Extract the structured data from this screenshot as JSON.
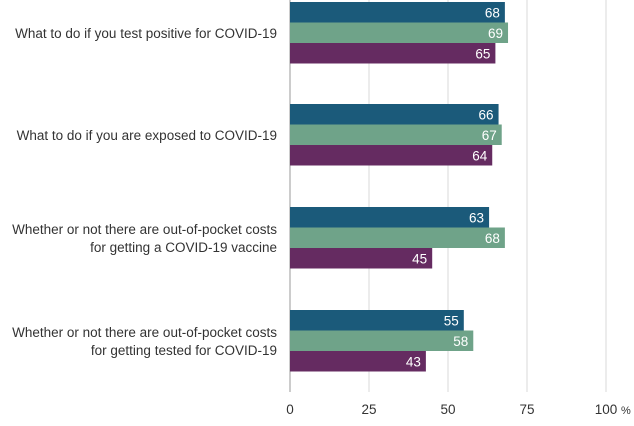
{
  "chart_data": {
    "type": "bar",
    "orientation": "horizontal",
    "categories": [
      [
        "What to do if you test positive for COVID-19"
      ],
      [
        "What to do if you are exposed to COVID-19"
      ],
      [
        "Whether or not there are out-of-pocket costs",
        "for getting a COVID-19 vaccine"
      ],
      [
        "Whether or not there are out-of-pocket costs",
        "for getting tested for COVID-19"
      ]
    ],
    "series": [
      {
        "values": [
          68,
          66,
          63,
          55
        ],
        "color": "#1b5a7a"
      },
      {
        "values": [
          69,
          67,
          68,
          58
        ],
        "color": "#6fa389"
      },
      {
        "values": [
          65,
          64,
          45,
          43
        ],
        "color": "#652b61"
      }
    ],
    "xlim": [
      0,
      100
    ],
    "xticks": [
      "0",
      "25",
      "50",
      "75",
      "100"
    ],
    "xunit": "%",
    "grid": true,
    "show_data_labels": true
  }
}
